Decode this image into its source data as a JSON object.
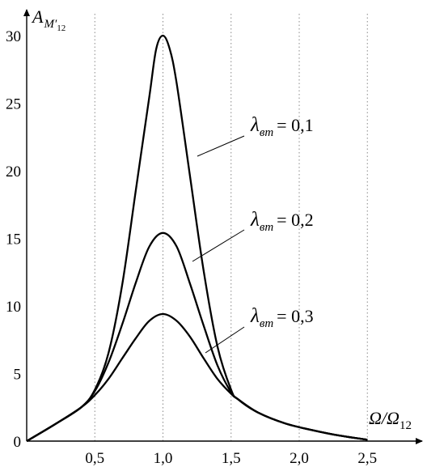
{
  "chart_data": {
    "type": "line",
    "title": "",
    "ylabel": {
      "main": "A",
      "sub": "M′",
      "subsub": "12"
    },
    "xlabel": {
      "main": "Ω/Ω",
      "sub": "12"
    },
    "xlim": [
      0,
      2.6
    ],
    "ylim": [
      0,
      32
    ],
    "grid": "dotted vertical at x ticks",
    "x_ticks": [
      {
        "value": 0.5,
        "label": "0,5"
      },
      {
        "value": 1.0,
        "label": "1,0"
      },
      {
        "value": 1.5,
        "label": "1,5"
      },
      {
        "value": 2.0,
        "label": "2,0"
      },
      {
        "value": 2.5,
        "label": "2,5"
      }
    ],
    "y_ticks": [
      {
        "value": 0,
        "label": "0"
      },
      {
        "value": 5,
        "label": "5"
      },
      {
        "value": 10,
        "label": "10"
      },
      {
        "value": 15,
        "label": "15"
      },
      {
        "value": 20,
        "label": "20"
      },
      {
        "value": 25,
        "label": "25"
      },
      {
        "value": 30,
        "label": "30"
      }
    ],
    "series": [
      {
        "label_symbol": "λ",
        "label_sub": "вт",
        "label_eq": "= 0,1",
        "x": [
          0,
          0.2,
          0.4,
          0.5,
          0.6,
          0.7,
          0.8,
          0.9,
          0.95,
          1.0,
          1.05,
          1.1,
          1.2,
          1.3,
          1.4,
          1.5,
          1.55,
          1.7,
          1.9,
          2.1,
          2.3,
          2.5
        ],
        "y": [
          0,
          1.2,
          2.5,
          3.8,
          6.5,
          11.5,
          18.5,
          25.5,
          29.0,
          30.0,
          29.0,
          26.5,
          19.5,
          12.5,
          7.0,
          3.8,
          3.1,
          2.1,
          1.3,
          0.8,
          0.4,
          0.1
        ]
      },
      {
        "label_symbol": "λ",
        "label_sub": "вт",
        "label_eq": "= 0,2",
        "x": [
          0,
          0.2,
          0.4,
          0.5,
          0.6,
          0.7,
          0.8,
          0.9,
          1.0,
          1.1,
          1.2,
          1.3,
          1.4,
          1.5,
          1.55,
          1.7,
          1.9,
          2.1,
          2.3,
          2.5
        ],
        "y": [
          0,
          1.2,
          2.5,
          3.7,
          5.8,
          8.6,
          11.7,
          14.4,
          15.4,
          14.4,
          11.6,
          8.5,
          5.6,
          3.6,
          3.1,
          2.1,
          1.3,
          0.8,
          0.4,
          0.1
        ]
      },
      {
        "label_symbol": "λ",
        "label_sub": "вт",
        "label_eq": "= 0,3",
        "x": [
          0,
          0.2,
          0.4,
          0.5,
          0.6,
          0.7,
          0.8,
          0.9,
          1.0,
          1.1,
          1.2,
          1.3,
          1.4,
          1.5,
          1.55,
          1.7,
          1.9,
          2.1,
          2.3,
          2.5
        ],
        "y": [
          0,
          1.2,
          2.5,
          3.4,
          4.6,
          6.1,
          7.6,
          8.9,
          9.4,
          8.9,
          7.7,
          6.1,
          4.6,
          3.5,
          3.1,
          2.1,
          1.3,
          0.8,
          0.4,
          0.1
        ]
      }
    ]
  }
}
